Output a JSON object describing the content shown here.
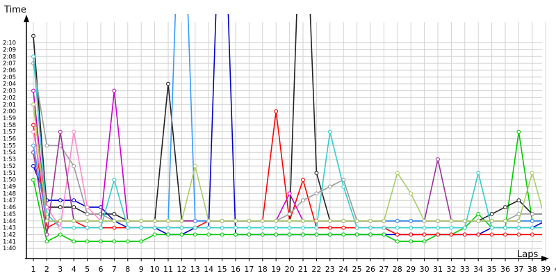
{
  "chart_data": {
    "type": "line",
    "xlabel": "Laps",
    "ylabel": "Time",
    "x": [
      1,
      2,
      3,
      4,
      5,
      6,
      7,
      8,
      9,
      10,
      11,
      12,
      13,
      14,
      15,
      16,
      17,
      18,
      19,
      20,
      21,
      22,
      23,
      24,
      25,
      26,
      27,
      28,
      29,
      30,
      31,
      32,
      33,
      34,
      35,
      36,
      37,
      38,
      39,
      40
    ],
    "y_tick_labels": [
      "1:40",
      "1:41",
      "1:42",
      "1:43",
      "1:44",
      "1:45",
      "1:46",
      "1:47",
      "1:48",
      "1:49",
      "1:50",
      "1:51",
      "1:52",
      "1:53",
      "1:54",
      "1:55",
      "1:56",
      "1:57",
      "1:58",
      "1:59",
      "2:00",
      "2:01",
      "2:02",
      "2:03",
      "2:04",
      "2:05",
      "2:06",
      "2:07",
      "2:08",
      "2:09",
      "2:10"
    ],
    "ylim_seconds": [
      98.5,
      133
    ],
    "y_unit": "seconds",
    "grid": true,
    "legend": "none",
    "series": [
      {
        "color": "#0000cc",
        "values": [
          112,
          107,
          107,
          107,
          106,
          106,
          104,
          103,
          103,
          103,
          102,
          102,
          103,
          103,
          161,
          102,
          102,
          102,
          102,
          102,
          102,
          102,
          102,
          102,
          102,
          102,
          102,
          102,
          102,
          102,
          102,
          102,
          102,
          102,
          103,
          103,
          103,
          103,
          104,
          104
        ]
      },
      {
        "color": "#00cc00",
        "values": [
          110,
          101,
          102,
          101,
          101,
          101,
          101,
          101,
          101,
          102,
          102,
          102,
          102,
          102,
          102,
          102,
          102,
          102,
          102,
          102,
          102,
          102,
          102,
          102,
          102,
          102,
          102,
          101,
          101,
          101,
          102,
          102,
          103,
          105,
          103,
          103,
          117,
          104,
          104,
          104
        ]
      },
      {
        "color": "#ff0000",
        "values": [
          118,
          103,
          104,
          104,
          103,
          103,
          103,
          103,
          103,
          103,
          103,
          103,
          103,
          104,
          104,
          104,
          104,
          104,
          120,
          104,
          110,
          103,
          103,
          103,
          103,
          103,
          103,
          102,
          102,
          102,
          102,
          102,
          102,
          102,
          102,
          102,
          102,
          102,
          102,
          103
        ]
      },
      {
        "color": "#202020",
        "values": [
          131,
          106,
          106,
          106,
          105,
          105,
          105,
          104,
          104,
          104,
          124,
          104,
          104,
          104,
          104,
          104,
          104,
          104,
          104,
          104,
          161,
          111,
          104,
          104,
          104,
          104,
          104,
          104,
          104,
          104,
          104,
          104,
          104,
          104,
          105,
          106,
          107,
          105,
          105,
          105
        ]
      },
      {
        "color": "#999999",
        "values": [
          127,
          115,
          115,
          112,
          105,
          105,
          104,
          104,
          104,
          104,
          104,
          104,
          104,
          104,
          104,
          104,
          104,
          104,
          104,
          105,
          107,
          108,
          109,
          110,
          104,
          104,
          104,
          104,
          104,
          104,
          104,
          104,
          104,
          104,
          104,
          104,
          105,
          105,
          105,
          105
        ]
      },
      {
        "color": "#ffcc00",
        "values": [
          121,
          104,
          104,
          104,
          104,
          104,
          104,
          104,
          104,
          104,
          104,
          104,
          104,
          104,
          104,
          104,
          104,
          104,
          104,
          104,
          104,
          104,
          104,
          104,
          104,
          104,
          104,
          104,
          104,
          104,
          104,
          104,
          104,
          104,
          104,
          104,
          104,
          104,
          104,
          104
        ]
      },
      {
        "color": "#cc00cc",
        "values": [
          123,
          104,
          104,
          104,
          104,
          104,
          123,
          104,
          104,
          104,
          104,
          104,
          104,
          104,
          104,
          104,
          104,
          104,
          104,
          108,
          104,
          104,
          104,
          104,
          104,
          104,
          104,
          104,
          104,
          104,
          104,
          104,
          104,
          104,
          104,
          104,
          104,
          104,
          104,
          115
        ]
      },
      {
        "color": "#33cccc",
        "values": [
          128,
          105,
          103,
          103,
          103,
          103,
          110,
          103,
          103,
          103,
          103,
          103,
          103,
          103,
          103,
          103,
          103,
          103,
          103,
          103,
          103,
          103,
          117,
          109,
          103,
          103,
          103,
          103,
          103,
          103,
          103,
          103,
          103,
          111,
          103,
          103,
          103,
          103,
          103,
          103
        ]
      },
      {
        "color": "#ff88cc",
        "values": [
          117,
          106,
          103,
          117,
          106,
          104,
          104,
          104,
          104,
          104,
          104,
          104,
          104,
          104,
          104,
          104,
          104,
          104,
          104,
          104,
          104,
          104,
          104,
          104,
          104,
          104,
          104,
          104,
          104,
          104,
          104,
          104,
          104,
          104,
          104,
          104,
          104,
          104,
          104,
          104
        ]
      },
      {
        "color": "#993399",
        "values": [
          114,
          102,
          117,
          104,
          104,
          104,
          104,
          104,
          104,
          104,
          104,
          104,
          104,
          104,
          104,
          104,
          104,
          104,
          104,
          104,
          104,
          104,
          104,
          104,
          104,
          104,
          104,
          104,
          104,
          104,
          113,
          104,
          104,
          104,
          104,
          104,
          104,
          104,
          104,
          104
        ]
      },
      {
        "color": "#3399ff",
        "values": [
          115,
          104,
          104,
          104,
          104,
          104,
          104,
          104,
          104,
          104,
          104,
          161,
          104,
          104,
          104,
          104,
          104,
          104,
          104,
          104,
          104,
          104,
          104,
          104,
          104,
          104,
          104,
          104,
          104,
          104,
          104,
          104,
          104,
          104,
          104,
          104,
          104,
          104,
          104,
          104
        ]
      },
      {
        "color": "#aacc66",
        "values": [
          121,
          104,
          104,
          104,
          104,
          104,
          104,
          104,
          104,
          104,
          104,
          104,
          112,
          104,
          104,
          104,
          104,
          104,
          104,
          104,
          104,
          104,
          104,
          104,
          104,
          104,
          104,
          111,
          108,
          104,
          104,
          104,
          104,
          104,
          104,
          104,
          104,
          111,
          104,
          104
        ]
      }
    ]
  }
}
